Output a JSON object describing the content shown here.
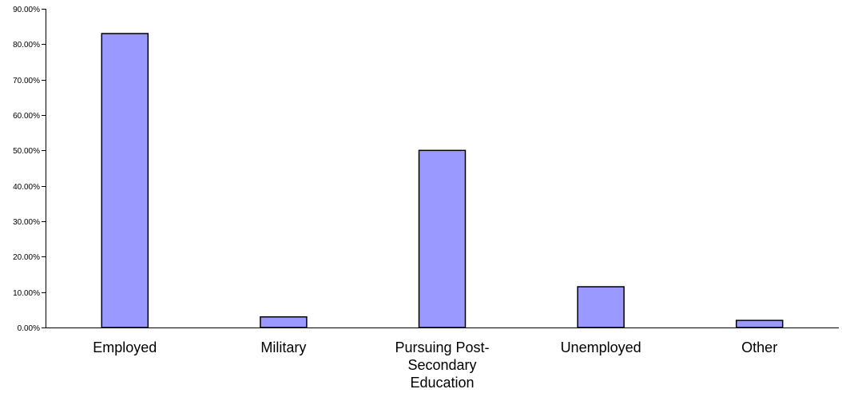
{
  "chart_data": {
    "type": "bar",
    "categories": [
      "Employed",
      "Military",
      "Pursuing Post-Secondary Education",
      "Unemployed",
      "Other"
    ],
    "category_label_lines": [
      [
        "Employed"
      ],
      [
        "Military"
      ],
      [
        "Pursuing Post-",
        "Secondary",
        "Education"
      ],
      [
        "Unemployed"
      ],
      [
        "Other"
      ]
    ],
    "values": [
      0.83,
      0.03,
      0.5,
      0.115,
      0.02
    ],
    "ylim": [
      0,
      0.9
    ],
    "y_ticks": [
      0,
      0.1,
      0.2,
      0.3,
      0.4,
      0.5,
      0.6,
      0.7,
      0.8,
      0.9
    ],
    "y_tick_labels": [
      "0.00%",
      "10.00%",
      "20.00%",
      "30.00%",
      "40.00%",
      "50.00%",
      "60.00%",
      "70.00%",
      "80.00%",
      "90.00%"
    ],
    "grid": false,
    "legend": "none",
    "title": "",
    "xlabel": "",
    "ylabel": "",
    "colors": {
      "bar_fill": "#9999ff",
      "bar_stroke": "#000000",
      "axis": "#000000",
      "text": "#000000"
    }
  }
}
